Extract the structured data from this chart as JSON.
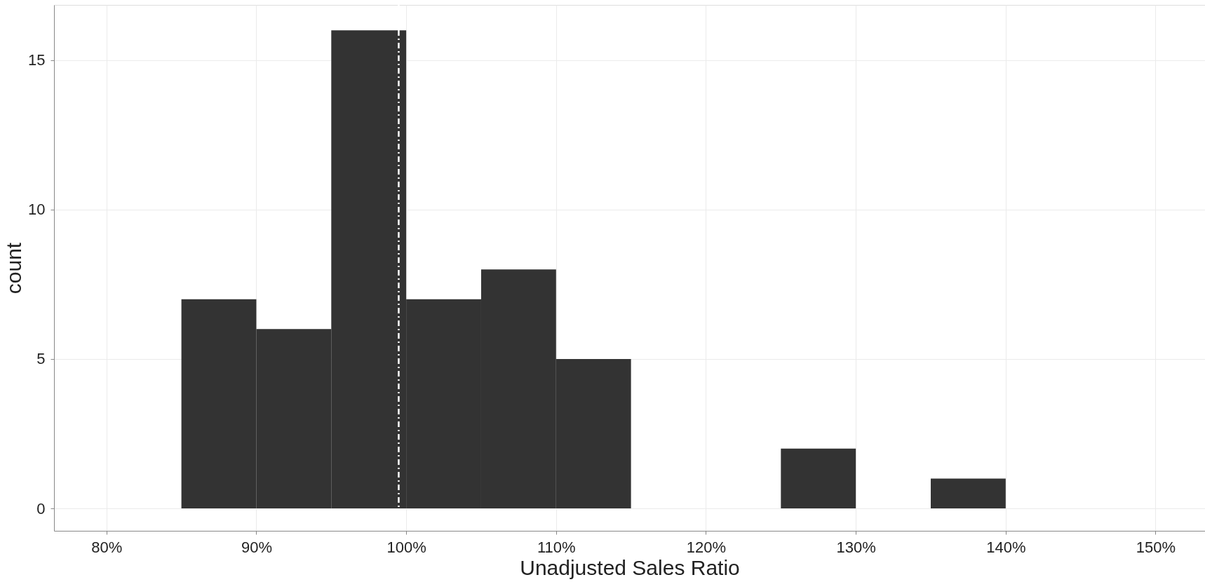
{
  "chart_data": {
    "type": "histogram",
    "xlabel": "Unadjusted Sales Ratio",
    "ylabel": "count",
    "color": "#333333",
    "bins": [
      85,
      90,
      95,
      100,
      105,
      110,
      115,
      120,
      125,
      130,
      135,
      140
    ],
    "values": [
      7,
      6,
      16,
      7,
      8,
      5,
      0,
      0,
      2,
      0,
      1
    ],
    "xlim": [
      76.5,
      153.3
    ],
    "ylim": [
      -0.75,
      16.85
    ],
    "xticks": [
      {
        "value": 80,
        "label": "80%"
      },
      {
        "value": 90,
        "label": "90%"
      },
      {
        "value": 100,
        "label": "100%"
      },
      {
        "value": 110,
        "label": "110%"
      },
      {
        "value": 120,
        "label": "120%"
      },
      {
        "value": 130,
        "label": "130%"
      },
      {
        "value": 140,
        "label": "140%"
      },
      {
        "value": 150,
        "label": "150%"
      }
    ],
    "yticks": [
      0,
      5,
      10,
      15
    ],
    "ref_lines": [
      {
        "axis": "x",
        "value": 99.5,
        "color": "#ffffff",
        "line_style": "dashdot"
      }
    ],
    "grid": true
  }
}
